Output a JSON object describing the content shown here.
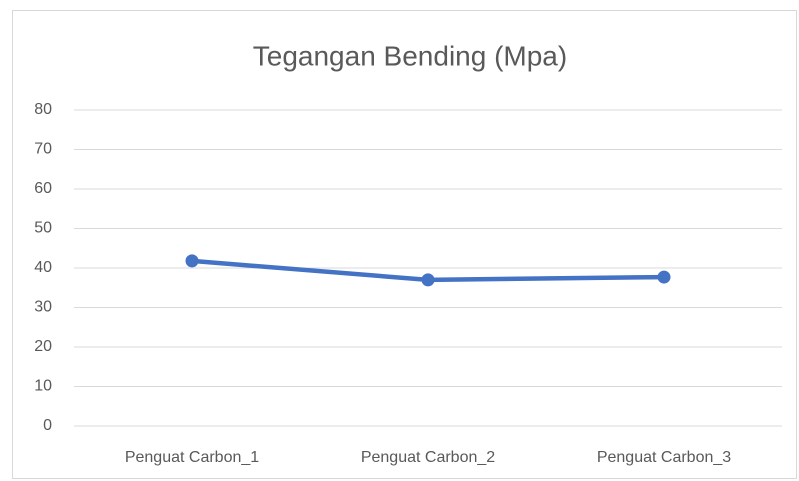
{
  "chart_data": {
    "type": "line",
    "title": "Tegangan Bending (Mpa)",
    "categories": [
      "Penguat Carbon_1",
      "Penguat Carbon_2",
      "Penguat Carbon_3"
    ],
    "values": [
      41.8,
      37.0,
      37.7
    ],
    "color": "#4472c4",
    "ylim": [
      0,
      80
    ],
    "yticks": [
      0,
      10,
      20,
      30,
      40,
      50,
      60,
      70,
      80
    ],
    "grid": true
  }
}
